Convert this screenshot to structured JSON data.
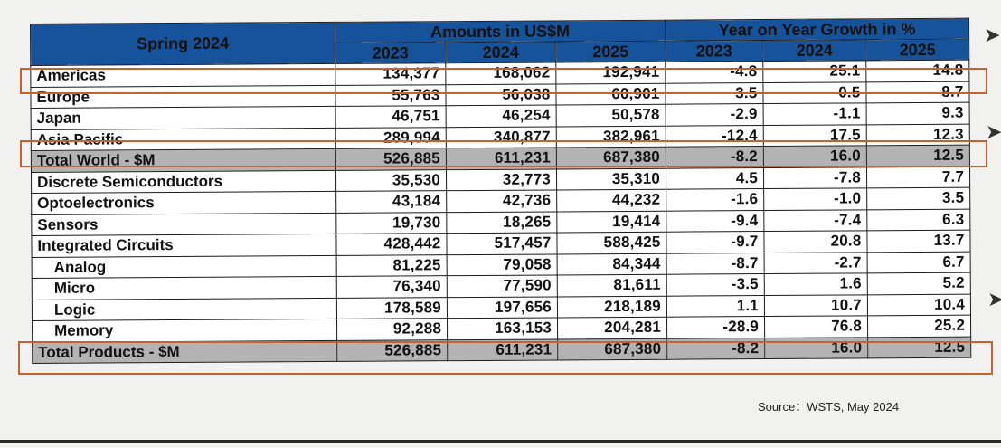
{
  "header": {
    "title": "Spring 2024",
    "group_amounts": "Amounts in US$M",
    "group_growth": "Year on Year Growth in %",
    "years_amounts": [
      "2023",
      "2024",
      "2025"
    ],
    "years_growth": [
      "2023",
      "2024",
      "2025"
    ]
  },
  "rows": [
    {
      "label": "Americas",
      "a2023": "134,377",
      "a2024": "168,062",
      "a2025": "192,941",
      "g2023": "-4.8",
      "g2024": "25.1",
      "g2025": "14.8"
    },
    {
      "label": "Europe",
      "a2023": "55,763",
      "a2024": "56,038",
      "a2025": "60,901",
      "g2023": "3.5",
      "g2024": "0.5",
      "g2025": "8.7"
    },
    {
      "label": "Japan",
      "a2023": "46,751",
      "a2024": "46,254",
      "a2025": "50,578",
      "g2023": "-2.9",
      "g2024": "-1.1",
      "g2025": "9.3"
    },
    {
      "label": "Asia Pacific",
      "a2023": "289,994",
      "a2024": "340,877",
      "a2025": "382,961",
      "g2023": "-12.4",
      "g2024": "17.5",
      "g2025": "12.3"
    },
    {
      "label": "Total World - $M",
      "a2023": "526,885",
      "a2024": "611,231",
      "a2025": "687,380",
      "g2023": "-8.2",
      "g2024": "16.0",
      "g2025": "12.5"
    },
    {
      "label": "Discrete Semiconductors",
      "a2023": "35,530",
      "a2024": "32,773",
      "a2025": "35,310",
      "g2023": "4.5",
      "g2024": "-7.8",
      "g2025": "7.7"
    },
    {
      "label": "Optoelectronics",
      "a2023": "43,184",
      "a2024": "42,736",
      "a2025": "44,232",
      "g2023": "-1.6",
      "g2024": "-1.0",
      "g2025": "3.5"
    },
    {
      "label": "Sensors",
      "a2023": "19,730",
      "a2024": "18,265",
      "a2025": "19,414",
      "g2023": "-9.4",
      "g2024": "-7.4",
      "g2025": "6.3"
    },
    {
      "label": "Integrated Circuits",
      "a2023": "428,442",
      "a2024": "517,457",
      "a2025": "588,425",
      "g2023": "-9.7",
      "g2024": "20.8",
      "g2025": "13.7"
    },
    {
      "label": "Analog",
      "a2023": "81,225",
      "a2024": "79,058",
      "a2025": "84,344",
      "g2023": "-8.7",
      "g2024": "-2.7",
      "g2025": "6.7"
    },
    {
      "label": "Micro",
      "a2023": "76,340",
      "a2024": "77,590",
      "a2025": "81,611",
      "g2023": "-3.5",
      "g2024": "1.6",
      "g2025": "5.2"
    },
    {
      "label": "Logic",
      "a2023": "178,589",
      "a2024": "197,656",
      "a2025": "218,189",
      "g2023": "1.1",
      "g2024": "10.7",
      "g2025": "10.4"
    },
    {
      "label": "Memory",
      "a2023": "92,288",
      "a2024": "163,153",
      "a2025": "204,281",
      "g2023": "-28.9",
      "g2024": "76.8",
      "g2025": "25.2"
    },
    {
      "label": "Total Products - $M",
      "a2023": "526,885",
      "a2024": "611,231",
      "a2025": "687,380",
      "g2023": "-8.2",
      "g2024": "16.0",
      "g2025": "12.5"
    }
  ],
  "source": "Source：WSTS, May 2024",
  "colors": {
    "header_bg": "#17539a",
    "total_bg": "#b3b3b3",
    "highlight": "#c8612d"
  }
}
